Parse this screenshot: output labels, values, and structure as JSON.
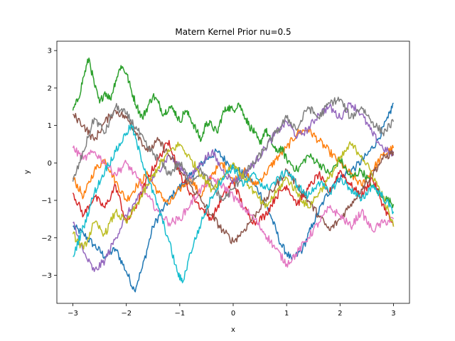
{
  "chart_data": {
    "type": "line",
    "title": "Matern Kernel Prior nu=0.5",
    "xlabel": "x",
    "ylabel": "y",
    "xlim": [
      -3.3,
      3.3
    ],
    "ylim": [
      -3.75,
      3.25
    ],
    "xticks": [
      -3,
      -2,
      -1,
      0,
      1,
      2,
      3
    ],
    "xtick_labels": [
      "−3",
      "−2",
      "−1",
      "0",
      "1",
      "2",
      "3"
    ],
    "yticks": [
      -3,
      -2,
      -1,
      0,
      1,
      2,
      3
    ],
    "ytick_labels": [
      "−3",
      "−2",
      "−1",
      "0",
      "1",
      "2",
      "3"
    ],
    "grid": false,
    "legend": "none",
    "series": [
      {
        "color": "#1f77b4",
        "x": [
          -3,
          -2.8,
          -2.6,
          -2.4,
          -2.2,
          -2,
          -1.85,
          -1.7,
          -1.5,
          -1.3,
          -1.1,
          -0.9,
          -0.7,
          -0.5,
          -0.3,
          -0.1,
          0.1,
          0.3,
          0.5,
          0.7,
          0.9,
          1.1,
          1.3,
          1.5,
          1.7,
          1.9,
          2.1,
          2.3,
          2.5,
          2.7,
          2.9,
          3
        ],
        "y": [
          -1.7,
          -1.9,
          -2.2,
          -2.5,
          -2.3,
          -2.9,
          -3.4,
          -2.8,
          -1.7,
          -1.2,
          -0.8,
          -0.5,
          -0.2,
          0.1,
          0.3,
          0,
          -0.2,
          -0.4,
          -0.8,
          -1.4,
          -2.2,
          -2.6,
          -2.3,
          -1.6,
          -1,
          -0.5,
          -0.3,
          -0.1,
          0.2,
          0.6,
          1.2,
          1.6
        ]
      },
      {
        "color": "#ff7f0e",
        "x": [
          -3,
          -2.8,
          -2.6,
          -2.4,
          -2.2,
          -2,
          -1.8,
          -1.6,
          -1.4,
          -1.2,
          -1,
          -0.8,
          -0.6,
          -0.4,
          -0.2,
          0,
          0.2,
          0.4,
          0.6,
          0.8,
          1,
          1.2,
          1.4,
          1.6,
          1.8,
          2,
          2.2,
          2.4,
          2.6,
          2.8,
          3
        ],
        "y": [
          -0.4,
          -0.9,
          -0.2,
          0.1,
          -0.5,
          -1,
          -0.6,
          -0.3,
          -0.8,
          -1.1,
          -0.7,
          -0.4,
          -0.9,
          -0.3,
          0,
          -0.5,
          -0.2,
          -0.6,
          -0.3,
          0.1,
          0.4,
          0.8,
          0.9,
          0.6,
          0.3,
          0,
          -0.3,
          -0.6,
          -0.2,
          0.2,
          0.4
        ]
      },
      {
        "color": "#2ca02c",
        "x": [
          -3,
          -2.9,
          -2.8,
          -2.7,
          -2.6,
          -2.5,
          -2.4,
          -2.3,
          -2.2,
          -2.1,
          -2,
          -1.9,
          -1.8,
          -1.7,
          -1.6,
          -1.5,
          -1.4,
          -1.3,
          -1.2,
          -1.1,
          -1,
          -0.9,
          -0.8,
          -0.7,
          -0.6,
          -0.5,
          -0.4,
          -0.3,
          -0.2,
          -0.1,
          0,
          0.1,
          0.2,
          0.3,
          0.4,
          0.5,
          0.6,
          0.7,
          0.8,
          0.9,
          1,
          1.2,
          1.4,
          1.6,
          1.8,
          2,
          2.2,
          2.4,
          2.6,
          2.8,
          3
        ],
        "y": [
          1.4,
          1.7,
          2.3,
          2.8,
          2.1,
          1.6,
          1.9,
          1.7,
          2.2,
          2.6,
          2.4,
          1.9,
          1.5,
          1.2,
          1.5,
          1.8,
          1.6,
          1.3,
          1.5,
          1.4,
          1.1,
          1.4,
          1.2,
          0.9,
          0.6,
          1.1,
          1,
          0.8,
          1.3,
          1.5,
          1.4,
          1.6,
          1.3,
          1,
          0.8,
          0.5,
          0.9,
          0.6,
          0.3,
          0.4,
          0.1,
          -0.2,
          0.2,
          0,
          -0.3,
          0.1,
          -0.4,
          -0.2,
          -0.6,
          -0.9,
          -1.1
        ]
      },
      {
        "color": "#d62728",
        "x": [
          -3,
          -2.8,
          -2.6,
          -2.4,
          -2.2,
          -2,
          -1.8,
          -1.6,
          -1.4,
          -1.2,
          -1,
          -0.8,
          -0.6,
          -0.4,
          -0.2,
          0,
          0.2,
          0.4,
          0.6,
          0.8,
          1,
          1.2,
          1.4,
          1.6,
          1.8,
          2,
          2.2,
          2.4,
          2.6,
          2.8,
          3
        ],
        "y": [
          -0.8,
          -1.4,
          -0.9,
          -1.2,
          -0.6,
          -1.6,
          -1.1,
          -0.4,
          0.1,
          0.6,
          -0.3,
          -0.8,
          -1.2,
          -1.5,
          -0.9,
          -0.5,
          -1.2,
          -1.6,
          -1.4,
          -0.9,
          -0.6,
          -1.1,
          -0.7,
          -0.3,
          -0.8,
          -0.2,
          -0.6,
          -0.9,
          -0.4,
          -1.1,
          -1.7
        ]
      },
      {
        "color": "#9467bd",
        "x": [
          -3,
          -2.8,
          -2.6,
          -2.4,
          -2.2,
          -2,
          -1.8,
          -1.6,
          -1.4,
          -1.2,
          -1,
          -0.8,
          -0.6,
          -0.4,
          -0.2,
          0,
          0.2,
          0.4,
          0.6,
          0.8,
          1,
          1.2,
          1.4,
          1.6,
          1.8,
          2,
          2.2,
          2.4,
          2.6,
          2.8,
          3
        ],
        "y": [
          -1.6,
          -2.4,
          -2.9,
          -2.6,
          -2,
          -1.4,
          -1,
          -0.6,
          -0.2,
          0.2,
          -0.1,
          -0.4,
          0,
          0.3,
          -0.2,
          -0.5,
          -0.3,
          0,
          0.4,
          0.8,
          1.1,
          0.7,
          0.9,
          1.3,
          1.5,
          1.2,
          1.6,
          1.3,
          0.8,
          0.4,
          0.2
        ]
      },
      {
        "color": "#8c564b",
        "x": [
          -3,
          -2.8,
          -2.6,
          -2.4,
          -2.2,
          -2,
          -1.8,
          -1.6,
          -1.4,
          -1.2,
          -1,
          -0.8,
          -0.6,
          -0.4,
          -0.2,
          0,
          0.2,
          0.4,
          0.6,
          0.8,
          1,
          1.2,
          1.4,
          1.6,
          1.8,
          2,
          2.2,
          2.4,
          2.6,
          2.8,
          3
        ],
        "y": [
          1.3,
          1,
          0.6,
          1.1,
          1.4,
          1.2,
          0.8,
          0.3,
          0.6,
          0.2,
          -0.2,
          -0.6,
          -1,
          -1.4,
          -1.8,
          -2.1,
          -1.8,
          -1.4,
          -1,
          -0.6,
          -0.2,
          -0.6,
          -1,
          -1.4,
          -1.8,
          -1.5,
          -1.1,
          -0.7,
          -0.3,
          0.1,
          0.3
        ]
      },
      {
        "color": "#e377c2",
        "x": [
          -3,
          -2.8,
          -2.6,
          -2.4,
          -2.2,
          -2,
          -1.8,
          -1.6,
          -1.4,
          -1.2,
          -1,
          -0.8,
          -0.6,
          -0.4,
          -0.2,
          0,
          0.2,
          0.4,
          0.6,
          0.8,
          1,
          1.2,
          1.4,
          1.6,
          1.8,
          2,
          2.2,
          2.4,
          2.6,
          2.8,
          3
        ],
        "y": [
          0.4,
          0.1,
          0.3,
          0,
          -0.3,
          0,
          -0.4,
          -0.9,
          -1.3,
          -1.6,
          -1.5,
          -1.1,
          -0.7,
          -0.4,
          -0.6,
          -0.9,
          -1.2,
          -1.5,
          -1.9,
          -2.3,
          -2.7,
          -2.4,
          -2,
          -1.6,
          -1.2,
          -1.4,
          -1.7,
          -1.3,
          -1.8,
          -1.6,
          -1.5
        ]
      },
      {
        "color": "#7f7f7f",
        "x": [
          -3,
          -2.8,
          -2.6,
          -2.4,
          -2.2,
          -2,
          -1.8,
          -1.6,
          -1.4,
          -1.2,
          -1,
          -0.8,
          -0.6,
          -0.4,
          -0.2,
          0,
          0.2,
          0.4,
          0.6,
          0.8,
          1,
          1.2,
          1.4,
          1.6,
          1.8,
          2,
          2.2,
          2.4,
          2.6,
          2.8,
          3
        ],
        "y": [
          -0.5,
          0.3,
          1.2,
          0.8,
          1.5,
          1.3,
          0.9,
          0.4,
          0.1,
          -0.3,
          0,
          -0.5,
          -0.2,
          -0.6,
          -1,
          -0.7,
          -0.3,
          0,
          0.4,
          0.8,
          1.2,
          0.9,
          1.5,
          1.2,
          1.6,
          1.7,
          1.2,
          1.5,
          1.1,
          0.8,
          1.1
        ]
      },
      {
        "color": "#bcbd22",
        "x": [
          -3,
          -2.8,
          -2.6,
          -2.4,
          -2.2,
          -2,
          -1.8,
          -1.6,
          -1.4,
          -1.2,
          -1,
          -0.8,
          -0.6,
          -0.4,
          -0.2,
          0,
          0.2,
          0.4,
          0.6,
          0.8,
          1,
          1.2,
          1.4,
          1.6,
          1.8,
          2,
          2.2,
          2.4,
          2.6,
          2.8,
          3
        ],
        "y": [
          -1.9,
          -2.3,
          -1.6,
          -1.9,
          -1.3,
          -1.6,
          -1.1,
          -0.6,
          -0.1,
          0.3,
          0.5,
          0.1,
          -0.3,
          -0.7,
          -0.4,
          0,
          -0.4,
          -0.8,
          -1.2,
          -0.8,
          -0.4,
          -0.8,
          -1.2,
          -0.8,
          -0.4,
          0.1,
          0.5,
          0.2,
          -0.3,
          -0.9,
          -1.7
        ]
      },
      {
        "color": "#17becf",
        "x": [
          -3,
          -2.8,
          -2.6,
          -2.4,
          -2.2,
          -2,
          -1.9,
          -1.8,
          -1.6,
          -1.4,
          -1.2,
          -1.05,
          -0.95,
          -0.8,
          -0.6,
          -0.4,
          -0.2,
          0,
          0.2,
          0.4,
          0.6,
          0.8,
          1,
          1.2,
          1.4,
          1.6,
          1.8,
          2,
          2.2,
          2.4,
          2.6,
          2.8,
          3
        ],
        "y": [
          -2.5,
          -1.7,
          -0.8,
          -0.2,
          0.3,
          0.8,
          1,
          0.5,
          -0.4,
          -1.2,
          -2.1,
          -2.9,
          -3.2,
          -2.4,
          -1.6,
          -0.9,
          -0.4,
          -0.1,
          -0.6,
          -0.3,
          -0.7,
          -0.5,
          -0.2,
          -0.6,
          -0.9,
          -0.5,
          -0.8,
          -0.4,
          -0.7,
          -1,
          -0.6,
          -0.9,
          -1.3
        ]
      }
    ]
  }
}
